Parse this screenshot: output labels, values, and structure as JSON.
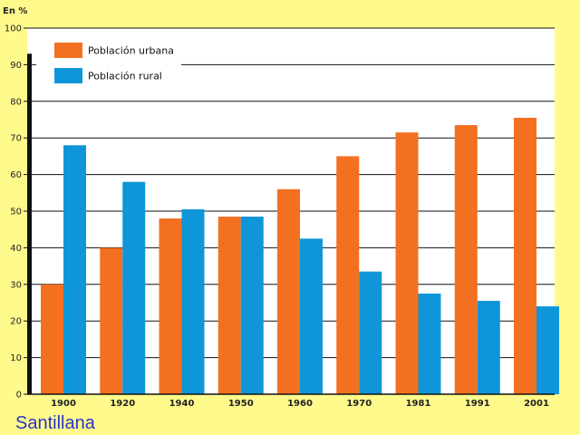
{
  "chart_data": {
    "type": "bar",
    "ylabel": "En %",
    "ylim": [
      0,
      100
    ],
    "yticks": [
      0,
      10,
      20,
      30,
      40,
      50,
      60,
      70,
      80,
      90,
      100
    ],
    "categories": [
      "1900",
      "1920",
      "1940",
      "1950",
      "1960",
      "1970",
      "1981",
      "1991",
      "2001"
    ],
    "series": [
      {
        "name": "Población urbana",
        "color": "#f37021",
        "values": [
          30,
          40,
          48,
          48.5,
          56,
          65,
          71.5,
          73.5,
          75.5
        ]
      },
      {
        "name": "Población rural",
        "color": "#0f96d8",
        "values": [
          68,
          58,
          50.5,
          48.5,
          42.5,
          33.5,
          27.5,
          25.5,
          24
        ]
      }
    ],
    "grid": true,
    "legend_position": "top-left"
  },
  "branding": {
    "publisher": "Santillana"
  }
}
